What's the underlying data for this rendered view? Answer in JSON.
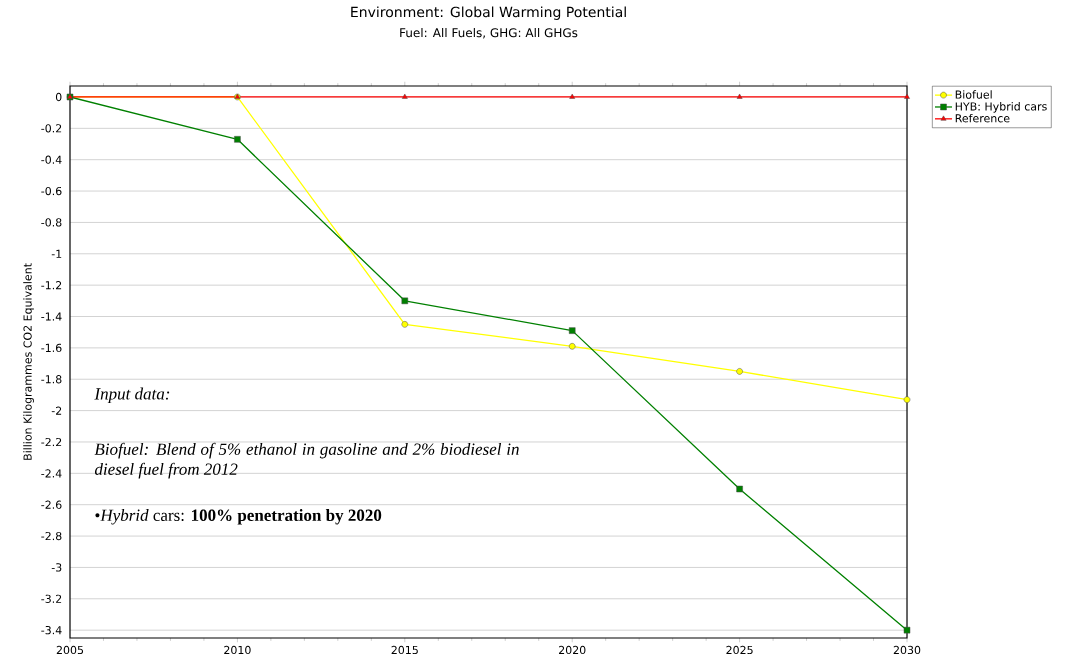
{
  "chart_data": {
    "type": "line",
    "title": "Environment: Global Warming Potential",
    "subtitle": "Fuel: All Fuels, GHG: All GHGs",
    "ylabel": "Billion Kilogrammes CO2 Equivalent",
    "x": [
      2005,
      2010,
      2015,
      2020,
      2025,
      2030
    ],
    "series": [
      {
        "name": "Biofuel",
        "color": "#ffff00",
        "marker": "circle",
        "values": [
          0,
          0,
          -1.45,
          -1.59,
          -1.75,
          -1.93
        ]
      },
      {
        "name": "HYB: Hybrid cars",
        "color": "#008000",
        "marker": "square",
        "values": [
          0,
          -0.27,
          -1.3,
          -1.49,
          -2.5,
          -3.4
        ]
      },
      {
        "name": "Reference",
        "color": "#ff0000",
        "marker": "triangle",
        "values": [
          0,
          0,
          0,
          0,
          0,
          0
        ]
      }
    ],
    "xlim": [
      2005,
      2030
    ],
    "xticks": [
      2005,
      2010,
      2015,
      2020,
      2025,
      2030
    ],
    "ylim": [
      -3.45,
      0.07
    ],
    "yticks": [
      0,
      -0.2,
      -0.4,
      -0.6,
      -0.8,
      -1,
      -1.2,
      -1.4,
      -1.6,
      -1.8,
      -2,
      -2.2,
      -2.4,
      -2.6,
      -2.8,
      -3,
      -3.2,
      -3.4
    ],
    "grid": "y",
    "legend": "top right",
    "line_style": "solid",
    "annotations": [
      "*Input data:*",
      "*Biofuel: Blend of 5% ethanol in gasoline and 2% biodiesel in diesel fuel from 2012*",
      "•*Hybrid* cars: **100% penetration by 2020**"
    ]
  }
}
